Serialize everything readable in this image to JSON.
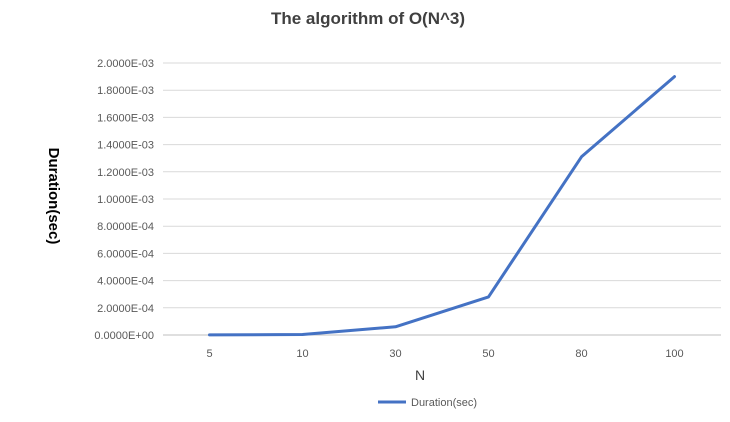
{
  "chart_data": {
    "type": "line",
    "title": "The algorithm of O(N^3)",
    "xlabel": "N",
    "ylabel": "Duration(sec)",
    "categories": [
      "5",
      "10",
      "30",
      "50",
      "80",
      "100"
    ],
    "series": [
      {
        "name": "Duration(sec)",
        "color": "#4472c4",
        "values": [
          1e-06,
          4e-06,
          6e-05,
          0.00028,
          0.00131,
          0.0019
        ]
      }
    ],
    "ylim": [
      0,
      0.002
    ],
    "yticks": [
      0,
      0.0002,
      0.0004,
      0.0006,
      0.0008,
      0.001,
      0.0012,
      0.0014,
      0.0016,
      0.0018,
      0.002
    ],
    "ytick_labels": [
      "0.0000E+00",
      "2.0000E-04",
      "4.0000E-04",
      "6.0000E-04",
      "8.0000E-04",
      "1.0000E-03",
      "1.2000E-03",
      "1.4000E-03",
      "1.6000E-03",
      "1.8000E-03",
      "2.0000E-03"
    ],
    "grid": true,
    "legend_position": "bottom"
  }
}
